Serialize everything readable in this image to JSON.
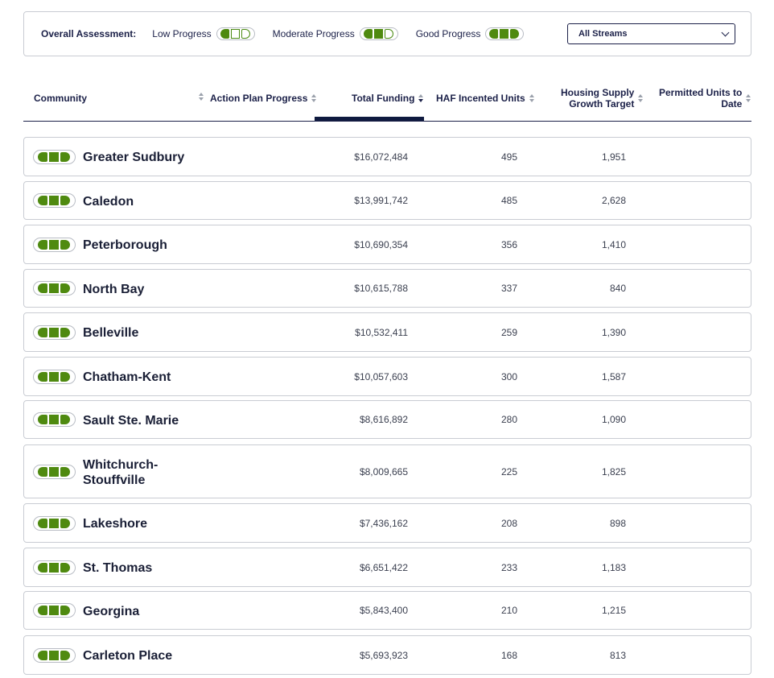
{
  "legend": {
    "title": "Overall Assessment:",
    "items": [
      {
        "label": "Low Progress",
        "level": 1
      },
      {
        "label": "Moderate Progress",
        "level": 2
      },
      {
        "label": "Good Progress",
        "level": 3
      }
    ],
    "progress_color": "#4f8a10"
  },
  "filter": {
    "selected": "All Streams"
  },
  "table": {
    "headers": {
      "community": "Community",
      "action_plan": "Action Plan Progress",
      "total_funding": "Total Funding",
      "haf_units": "HAF Incented Units",
      "target_line1": "Housing Supply",
      "target_line2": "Growth Target",
      "permitted_line1": "Permitted Units to",
      "permitted_line2": "Date"
    },
    "sorted_by": "Total Funding",
    "rows": [
      {
        "community": "Greater Sudbury",
        "progress": 3,
        "funding": "$16,072,484",
        "haf": "495",
        "target": "1,951"
      },
      {
        "community": "Caledon",
        "progress": 3,
        "funding": "$13,991,742",
        "haf": "485",
        "target": "2,628"
      },
      {
        "community": "Peterborough",
        "progress": 3,
        "funding": "$10,690,354",
        "haf": "356",
        "target": "1,410"
      },
      {
        "community": "North Bay",
        "progress": 3,
        "funding": "$10,615,788",
        "haf": "337",
        "target": "840"
      },
      {
        "community": "Belleville",
        "progress": 3,
        "funding": "$10,532,411",
        "haf": "259",
        "target": "1,390"
      },
      {
        "community": "Chatham-Kent",
        "progress": 3,
        "funding": "$10,057,603",
        "haf": "300",
        "target": "1,587"
      },
      {
        "community": "Sault Ste. Marie",
        "progress": 3,
        "funding": "$8,616,892",
        "haf": "280",
        "target": "1,090"
      },
      {
        "community": "Whitchurch-Stouffville",
        "progress": 3,
        "funding": "$8,009,665",
        "haf": "225",
        "target": "1,825"
      },
      {
        "community": "Lakeshore",
        "progress": 3,
        "funding": "$7,436,162",
        "haf": "208",
        "target": "898"
      },
      {
        "community": "St. Thomas",
        "progress": 3,
        "funding": "$6,651,422",
        "haf": "233",
        "target": "1,183"
      },
      {
        "community": "Georgina",
        "progress": 3,
        "funding": "$5,843,400",
        "haf": "210",
        "target": "1,215"
      },
      {
        "community": "Carleton Place",
        "progress": 3,
        "funding": "$5,693,923",
        "haf": "168",
        "target": "813"
      }
    ]
  }
}
